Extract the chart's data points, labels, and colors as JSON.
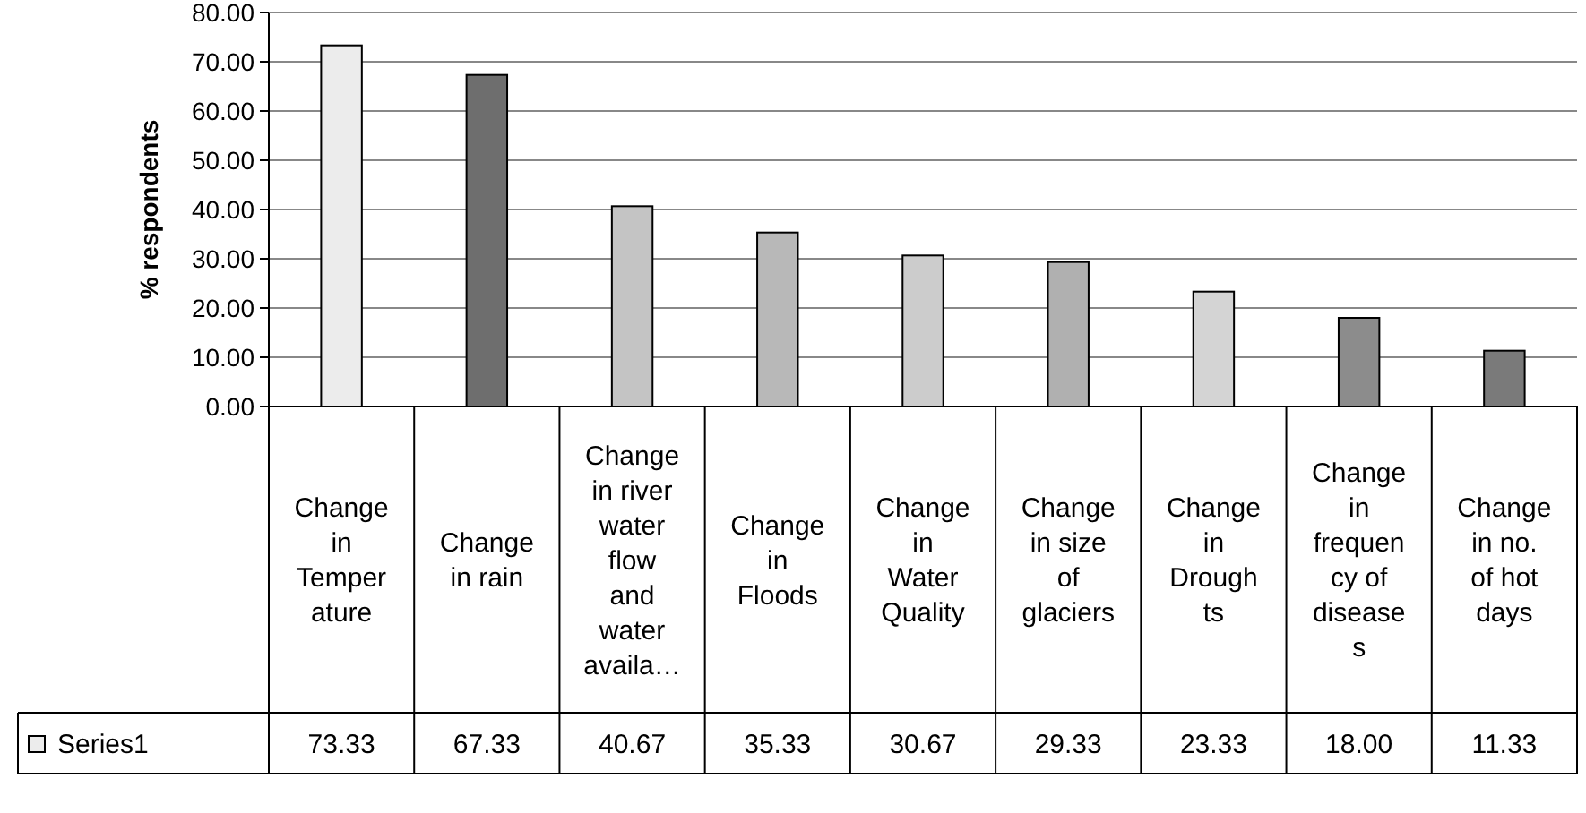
{
  "chart_data": {
    "type": "bar",
    "ylabel": "% respondents",
    "categories": [
      "Change in Temperature",
      "Change in rain",
      "Change in river water flow and water availa…",
      "Change in Floods",
      "Change in Water Quality",
      "Change in size of glaciers",
      "Change in Droughts",
      "Change in frequency of diseases",
      "Change in no. of hot days"
    ],
    "series": [
      {
        "name": "Series1",
        "colors": [
          "#ececec",
          "#6e6e6e",
          "#c4c4c4",
          "#b8b8b8",
          "#cccccc",
          "#b0b0b0",
          "#d4d4d4",
          "#8c8c8c",
          "#7a7a7a"
        ],
        "values": [
          73.33,
          67.33,
          40.67,
          35.33,
          30.67,
          29.33,
          23.33,
          18.0,
          11.33
        ],
        "value_labels": [
          "73.33",
          "67.33",
          "40.67",
          "35.33",
          "30.67",
          "29.33",
          "23.33",
          "18.00",
          "11.33"
        ]
      }
    ],
    "ylim": [
      0,
      80
    ],
    "yticks": [
      {
        "value": 0,
        "label": "0.00"
      },
      {
        "value": 10,
        "label": "10.00"
      },
      {
        "value": 20,
        "label": "20.00"
      },
      {
        "value": 30,
        "label": "30.00"
      },
      {
        "value": 40,
        "label": "40.00"
      },
      {
        "value": 50,
        "label": "50.00"
      },
      {
        "value": 60,
        "label": "60.00"
      },
      {
        "value": 70,
        "label": "70.00"
      },
      {
        "value": 80,
        "label": "80.00"
      }
    ],
    "grid": "y",
    "legend": "bottom"
  }
}
